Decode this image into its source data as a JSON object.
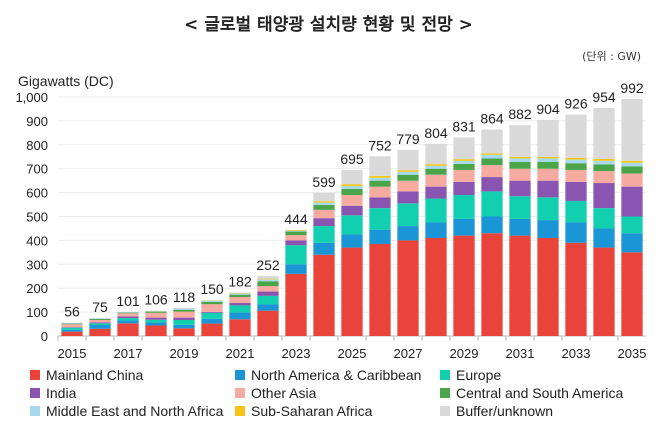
{
  "title": "< 글로벌 태양광 설치량 현황 및 전망 >",
  "unit": "(단위 : GW)",
  "chart_data": {
    "type": "bar",
    "stacked": true,
    "ylabel": "Gigawatts (DC)",
    "ylim": [
      0,
      1000
    ],
    "yticks": [
      "0",
      "100",
      "200",
      "300",
      "400",
      "500",
      "600",
      "700",
      "800",
      "900",
      "1,000"
    ],
    "grid": true,
    "legend": "bottom",
    "categories": [
      "2015",
      "2016",
      "2017",
      "2018",
      "2019",
      "2020",
      "2021",
      "2022",
      "2023",
      "2024",
      "2025",
      "2026",
      "2027",
      "2028",
      "2029",
      "2030",
      "2031",
      "2032",
      "2033",
      "2034",
      "2035"
    ],
    "xticklabels": [
      "2015",
      "2017",
      "2019",
      "2021",
      "2023",
      "2025",
      "2027",
      "2029",
      "2031",
      "2033",
      "2035"
    ],
    "totals": [
      "56",
      "75",
      "101",
      "106",
      "118",
      "150",
      "182",
      "252",
      "444",
      "599",
      "695",
      "752",
      "779",
      "804",
      "831",
      "864",
      "882",
      "904",
      "926",
      "954",
      "992"
    ],
    "series": [
      {
        "name": "Mainland China",
        "color": "#e8443a",
        "values": [
          18,
          30,
          53,
          44,
          32,
          52,
          70,
          106,
          260,
          340,
          370,
          385,
          400,
          410,
          420,
          430,
          420,
          410,
          390,
          370,
          350
        ]
      },
      {
        "name": "North America & Caribbean",
        "color": "#1a95d5",
        "values": [
          8,
          16,
          12,
          13,
          15,
          20,
          28,
          26,
          40,
          50,
          55,
          60,
          60,
          65,
          70,
          70,
          70,
          75,
          85,
          80,
          80
        ]
      },
      {
        "name": "Europe",
        "color": "#12cfb0",
        "values": [
          9,
          7,
          10,
          11,
          20,
          25,
          30,
          36,
          80,
          70,
          80,
          90,
          95,
          100,
          100,
          105,
          95,
          95,
          90,
          85,
          70
        ]
      },
      {
        "name": "India",
        "color": "#8a55b0",
        "values": [
          2,
          4,
          7,
          9,
          10,
          4,
          10,
          18,
          20,
          33,
          40,
          45,
          50,
          50,
          55,
          60,
          65,
          70,
          80,
          105,
          125
        ]
      },
      {
        "name": "Other Asia",
        "color": "#f7aaa0",
        "values": [
          12,
          10,
          13,
          20,
          25,
          32,
          25,
          23,
          22,
          35,
          45,
          45,
          45,
          50,
          50,
          50,
          50,
          50,
          50,
          50,
          55
        ]
      },
      {
        "name": "Central and South America",
        "color": "#4aa54a",
        "values": [
          3,
          4,
          3,
          5,
          8,
          10,
          10,
          20,
          15,
          20,
          25,
          25,
          25,
          25,
          25,
          28,
          28,
          28,
          28,
          28,
          30
        ]
      },
      {
        "name": "Middle East and North Africa",
        "color": "#a6d8ee",
        "values": [
          2,
          2,
          2,
          2,
          5,
          5,
          5,
          8,
          4,
          10,
          12,
          12,
          12,
          12,
          13,
          15,
          15,
          15,
          15,
          15,
          15
        ]
      },
      {
        "name": "Sub-Saharan Africa",
        "color": "#f5c518",
        "values": [
          0,
          0,
          0,
          1,
          1,
          1,
          2,
          3,
          3,
          6,
          8,
          8,
          7,
          7,
          7,
          6,
          6,
          6,
          8,
          8,
          8
        ]
      },
      {
        "name": "Buffer/unknown",
        "color": "#d9d9d9",
        "values": [
          2,
          2,
          1,
          1,
          2,
          1,
          2,
          12,
          0,
          35,
          60,
          82,
          85,
          85,
          91,
          100,
          133,
          155,
          180,
          213,
          259
        ]
      }
    ]
  }
}
